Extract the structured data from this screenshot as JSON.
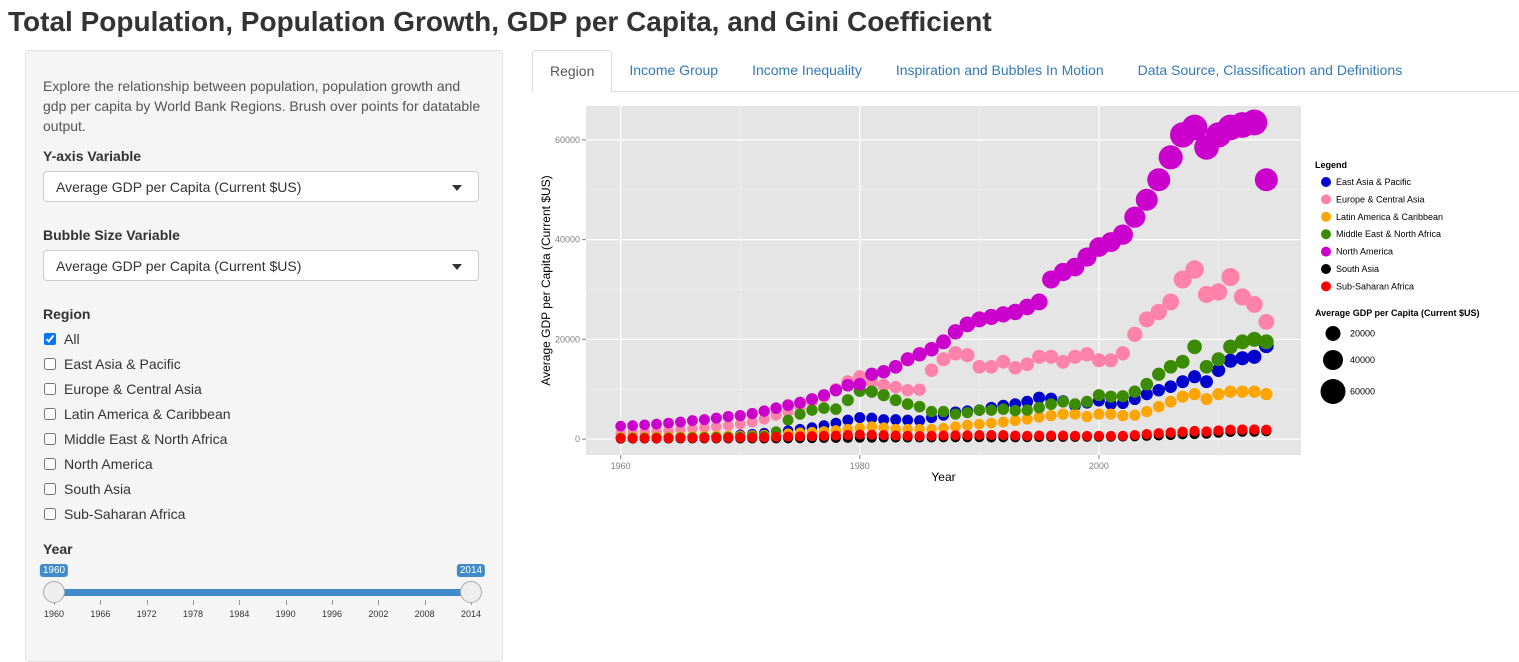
{
  "header": {
    "title": "Total Population, Population Growth, GDP per Capita, and Gini Coefficient"
  },
  "sidebar": {
    "description": "Explore the relationship between population, population growth and gdp per capita by World Bank Regions. Brush over points for datatable output.",
    "y_variable": {
      "label": "Y-axis Variable",
      "selected": "Average GDP per Capita (Current $US)"
    },
    "size_variable": {
      "label": "Bubble Size Variable",
      "selected": "Average GDP per Capita (Current $US)"
    },
    "region": {
      "label": "Region",
      "options": [
        {
          "label": "All",
          "checked": true
        },
        {
          "label": "East Asia & Pacific",
          "checked": false
        },
        {
          "label": "Europe & Central Asia",
          "checked": false
        },
        {
          "label": "Latin America & Caribbean",
          "checked": false
        },
        {
          "label": "Middle East & North Africa",
          "checked": false
        },
        {
          "label": "North America",
          "checked": false
        },
        {
          "label": "South Asia",
          "checked": false
        },
        {
          "label": "Sub-Saharan Africa",
          "checked": false
        }
      ]
    },
    "year": {
      "label": "Year",
      "range": [
        1960,
        2014
      ],
      "from": 1960,
      "to": 2014,
      "ticks": [
        1960,
        1966,
        1972,
        1978,
        1984,
        1990,
        1996,
        2002,
        2008,
        2014
      ]
    }
  },
  "tabs": {
    "items": [
      "Region",
      "Income Group",
      "Income Inequality",
      "Inspiration and Bubbles In Motion",
      "Data Source, Classification and Definitions"
    ],
    "active": 0
  },
  "chart_data": {
    "type": "scatter",
    "x_label": "Year",
    "y_label": "Average GDP per Capita (Current $US)",
    "xlim": [
      1957.1,
      2016.9
    ],
    "ylim": [
      -3200,
      66800
    ],
    "xticks": [
      1960,
      1980,
      2000
    ],
    "yticks": [
      0,
      20000,
      40000,
      60000
    ],
    "x_minor_ticks": [
      1970,
      1990,
      2010
    ],
    "y_minor_ticks": [
      10000,
      30000,
      50000
    ],
    "grid": true,
    "legend_title": "Legend",
    "size_legend": {
      "title": "Average GDP per Capita (Current $US)",
      "values": [
        20000,
        40000,
        60000
      ]
    },
    "x": [
      1960,
      1961,
      1962,
      1963,
      1964,
      1965,
      1966,
      1967,
      1968,
      1969,
      1970,
      1971,
      1972,
      1973,
      1974,
      1975,
      1976,
      1977,
      1978,
      1979,
      1980,
      1981,
      1982,
      1983,
      1984,
      1985,
      1986,
      1987,
      1988,
      1989,
      1990,
      1991,
      1992,
      1993,
      1994,
      1995,
      1996,
      1997,
      1998,
      1999,
      2000,
      2001,
      2002,
      2003,
      2004,
      2005,
      2006,
      2007,
      2008,
      2009,
      2010,
      2011,
      2012,
      2013,
      2014
    ],
    "series": [
      {
        "name": "East Asia & Pacific",
        "color": "#0000cc",
        "values": [
          300,
          320,
          330,
          350,
          380,
          420,
          460,
          500,
          560,
          650,
          900,
          1000,
          1200,
          1500,
          1700,
          2000,
          2300,
          2700,
          3200,
          3800,
          4300,
          4200,
          3900,
          3900,
          3800,
          3700,
          4300,
          4800,
          5400,
          5600,
          5800,
          6300,
          6700,
          7000,
          7500,
          8300,
          8100,
          7600,
          6700,
          7300,
          7700,
          7000,
          7200,
          8000,
          9000,
          9800,
          10500,
          11500,
          12500,
          11500,
          13800,
          15700,
          16200,
          16500,
          18700
        ]
      },
      {
        "name": "Europe & Central Asia",
        "color": "#ff82ab",
        "values": [
          1200,
          1300,
          1400,
          1500,
          1700,
          1900,
          2100,
          2300,
          2500,
          2700,
          3000,
          3400,
          4000,
          4800,
          5500,
          6500,
          7500,
          8500,
          10000,
          11500,
          12500,
          11500,
          10800,
          10400,
          9800,
          9900,
          13800,
          16000,
          17200,
          16800,
          14500,
          14500,
          15500,
          14300,
          15000,
          16500,
          16500,
          15500,
          16500,
          17000,
          15800,
          15800,
          17200,
          21000,
          24000,
          25500,
          27500,
          32000,
          34000,
          29000,
          29500,
          32500,
          28500,
          27000,
          23500
        ]
      },
      {
        "name": "Latin America & Caribbean",
        "color": "#ffa500",
        "values": [
          400,
          420,
          430,
          450,
          480,
          520,
          560,
          600,
          640,
          670,
          700,
          760,
          830,
          950,
          1100,
          1300,
          1400,
          1550,
          1750,
          2000,
          2200,
          2500,
          2300,
          2000,
          2000,
          2000,
          2000,
          2200,
          2500,
          2800,
          3000,
          3200,
          3400,
          3700,
          4000,
          4400,
          4700,
          5000,
          5000,
          4500,
          5000,
          5000,
          4700,
          4800,
          5500,
          6500,
          7500,
          8500,
          9000,
          8000,
          9000,
          9500,
          9500,
          9500,
          9000
        ]
      },
      {
        "name": "Middle East & North Africa",
        "color": "#3b8b00",
        "values": [
          250,
          270,
          290,
          300,
          320,
          350,
          370,
          400,
          430,
          460,
          500,
          560,
          650,
          1500,
          3800,
          5000,
          5800,
          6200,
          6000,
          7800,
          9700,
          9500,
          8800,
          7800,
          7000,
          6500,
          5500,
          5500,
          5000,
          5300,
          5800,
          5800,
          6000,
          5700,
          5800,
          6300,
          7000,
          7500,
          7000,
          7500,
          8800,
          8500,
          8600,
          9500,
          11000,
          13000,
          14500,
          15500,
          18500,
          14500,
          16000,
          18500,
          19500,
          20000,
          19500
        ]
      },
      {
        "name": "North America",
        "color": "#cc00cc",
        "values": [
          2600,
          2700,
          2850,
          3000,
          3200,
          3400,
          3700,
          3900,
          4200,
          4500,
          4700,
          5100,
          5600,
          6200,
          6800,
          7300,
          8000,
          8800,
          9800,
          10800,
          11000,
          13000,
          13500,
          14500,
          16000,
          17000,
          18000,
          19500,
          21500,
          23000,
          24000,
          24500,
          25000,
          25500,
          26500,
          27500,
          32000,
          33500,
          34500,
          36500,
          38500,
          39500,
          41000,
          44500,
          48000,
          52000,
          56500,
          61000,
          62500,
          58500,
          61000,
          62500,
          63000,
          63500,
          52000
        ]
      },
      {
        "name": "South Asia",
        "color": "#000000",
        "values": [
          80,
          85,
          90,
          95,
          100,
          105,
          110,
          110,
          115,
          120,
          120,
          125,
          125,
          130,
          150,
          170,
          180,
          190,
          210,
          230,
          260,
          280,
          290,
          300,
          300,
          310,
          320,
          340,
          350,
          350,
          360,
          330,
          340,
          340,
          370,
          400,
          420,
          430,
          430,
          450,
          460,
          470,
          490,
          560,
          640,
          720,
          800,
          960,
          1000,
          1100,
          1300,
          1450,
          1500,
          1500,
          1600
        ]
      },
      {
        "name": "Sub-Saharan Africa",
        "color": "#ff0000",
        "values": [
          150,
          160,
          170,
          180,
          190,
          200,
          210,
          220,
          230,
          250,
          280,
          300,
          340,
          420,
          500,
          530,
          570,
          640,
          700,
          800,
          900,
          850,
          780,
          700,
          650,
          600,
          650,
          700,
          750,
          750,
          800,
          800,
          780,
          700,
          650,
          700,
          700,
          700,
          650,
          620,
          650,
          620,
          650,
          800,
          980,
          1150,
          1300,
          1450,
          1600,
          1500,
          1700,
          1850,
          1900,
          1900,
          1850
        ]
      }
    ]
  }
}
